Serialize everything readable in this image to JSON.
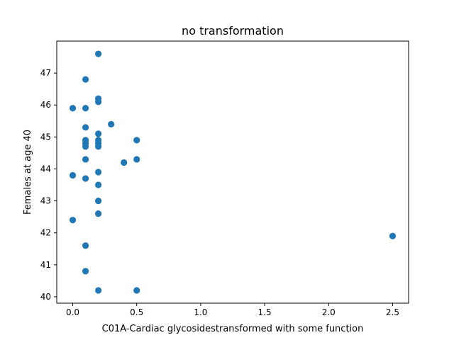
{
  "chart_data": {
    "type": "scatter",
    "title": "no transformation",
    "xlabel": "C01A-Cardiac glycosidestransformed with some function",
    "ylabel": "Females at age 40",
    "xlim": [
      -0.125,
      2.625
    ],
    "ylim": [
      39.8,
      48.0
    ],
    "xticks": [
      0.0,
      0.5,
      1.0,
      1.5,
      2.0,
      2.5
    ],
    "xtick_labels": [
      "0.0",
      "0.5",
      "1.0",
      "1.5",
      "2.0",
      "2.5"
    ],
    "yticks": [
      40,
      41,
      42,
      43,
      44,
      45,
      46,
      47
    ],
    "ytick_labels": [
      "40",
      "41",
      "42",
      "43",
      "44",
      "45",
      "46",
      "47"
    ],
    "marker_color": "#1f77b4",
    "grid": false,
    "points": [
      {
        "x": 0.0,
        "y": 45.9
      },
      {
        "x": 0.0,
        "y": 43.8
      },
      {
        "x": 0.0,
        "y": 42.4
      },
      {
        "x": 0.1,
        "y": 46.8
      },
      {
        "x": 0.1,
        "y": 45.9
      },
      {
        "x": 0.1,
        "y": 45.3
      },
      {
        "x": 0.1,
        "y": 44.9
      },
      {
        "x": 0.1,
        "y": 44.8
      },
      {
        "x": 0.1,
        "y": 44.7
      },
      {
        "x": 0.1,
        "y": 44.3
      },
      {
        "x": 0.1,
        "y": 43.7
      },
      {
        "x": 0.1,
        "y": 41.6
      },
      {
        "x": 0.1,
        "y": 40.8
      },
      {
        "x": 0.2,
        "y": 47.6
      },
      {
        "x": 0.2,
        "y": 46.2
      },
      {
        "x": 0.2,
        "y": 46.1
      },
      {
        "x": 0.2,
        "y": 45.1
      },
      {
        "x": 0.2,
        "y": 44.9
      },
      {
        "x": 0.2,
        "y": 44.8
      },
      {
        "x": 0.2,
        "y": 44.7
      },
      {
        "x": 0.2,
        "y": 43.9
      },
      {
        "x": 0.2,
        "y": 43.5
      },
      {
        "x": 0.2,
        "y": 43.0
      },
      {
        "x": 0.2,
        "y": 42.6
      },
      {
        "x": 0.2,
        "y": 40.2
      },
      {
        "x": 0.3,
        "y": 45.4
      },
      {
        "x": 0.4,
        "y": 44.2
      },
      {
        "x": 0.5,
        "y": 44.9
      },
      {
        "x": 0.5,
        "y": 44.3
      },
      {
        "x": 0.5,
        "y": 40.2
      },
      {
        "x": 2.5,
        "y": 41.9
      }
    ]
  }
}
